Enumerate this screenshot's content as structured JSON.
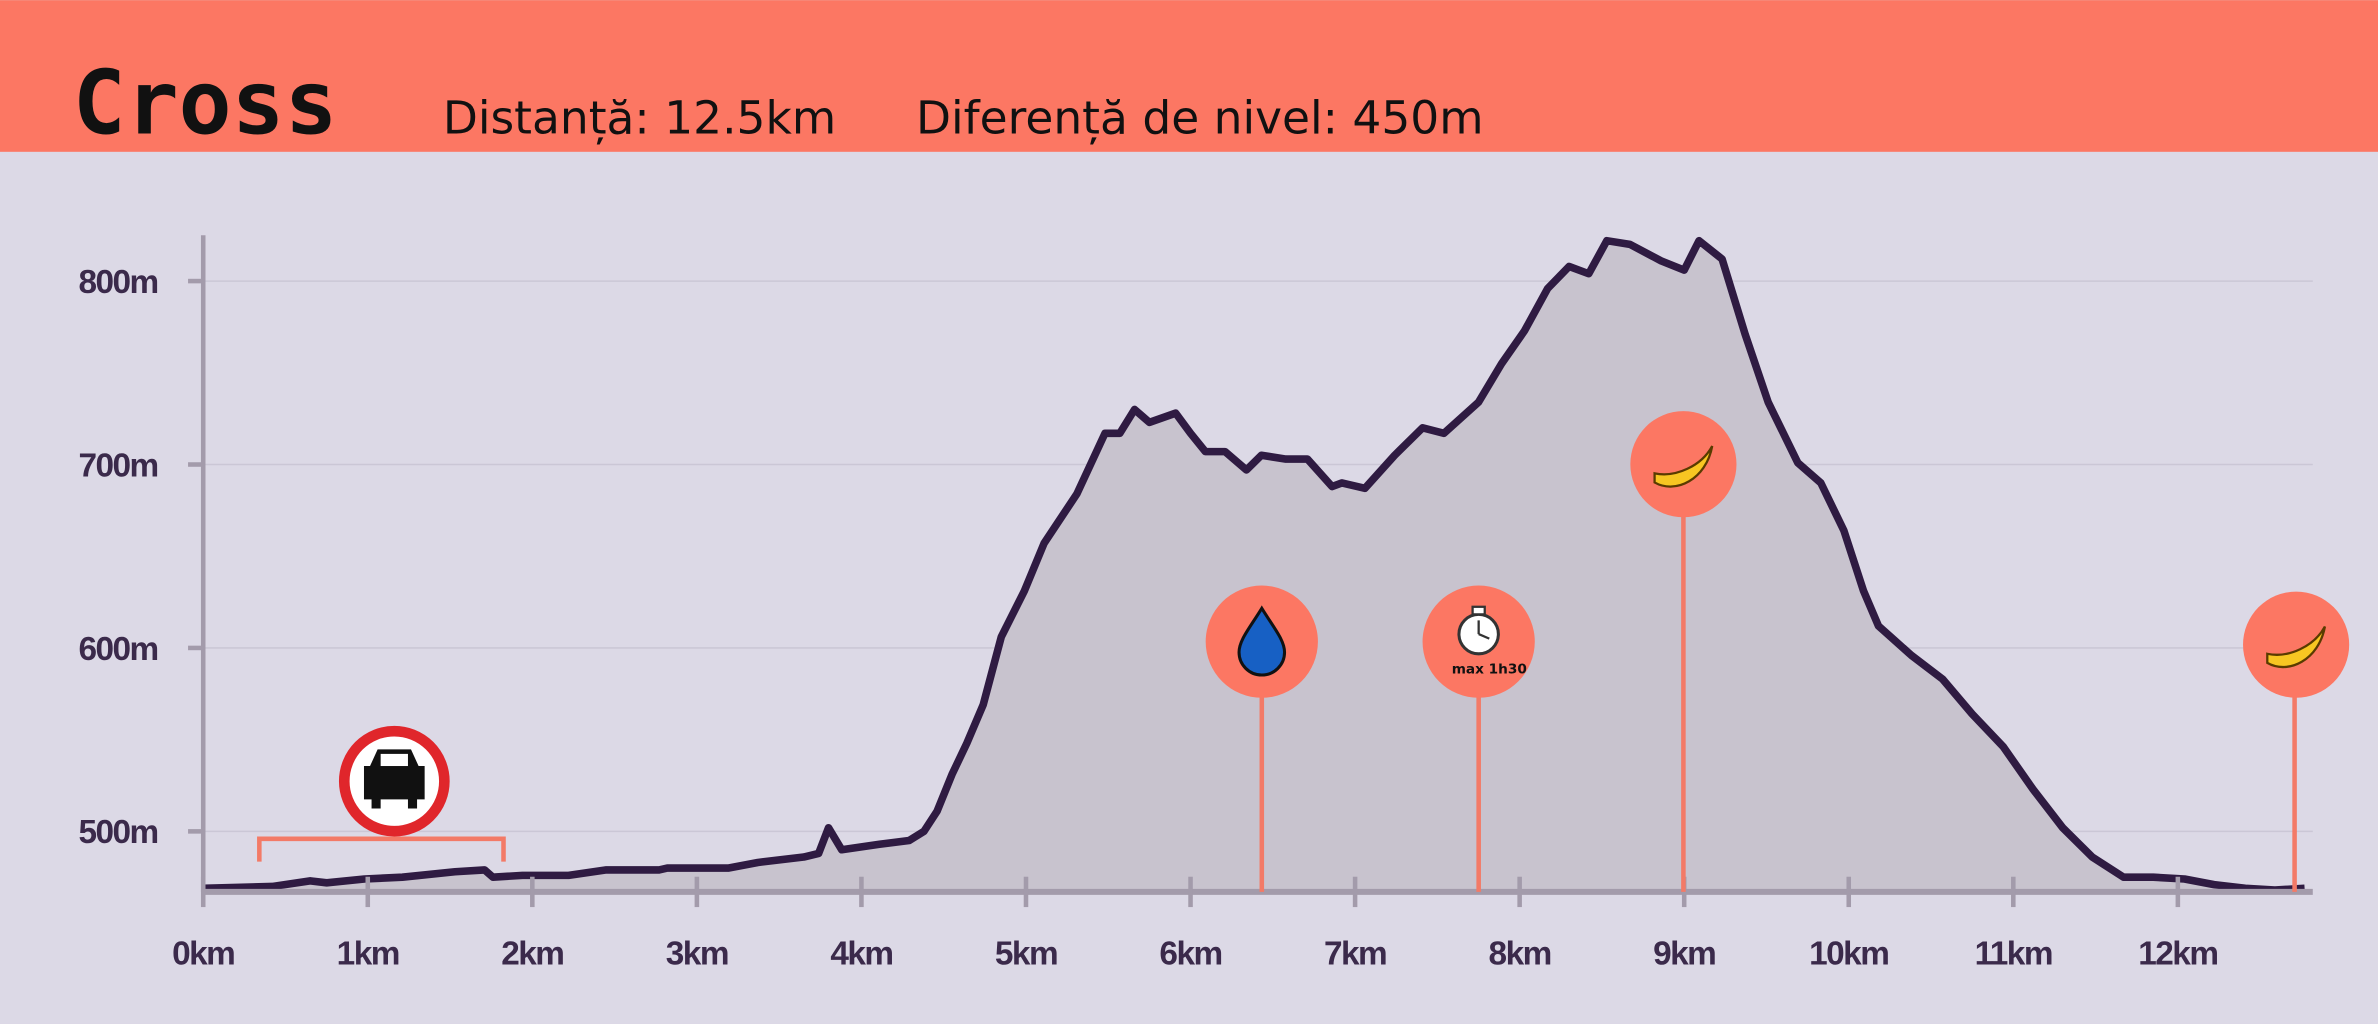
{
  "header": {
    "title": "Cross",
    "distance": "Distanță: 12.5km",
    "elevation_gain": "Diferență de nivel: 450m"
  },
  "chart_data": {
    "type": "area",
    "x": [
      0,
      0.42,
      0.65,
      0.75,
      0.98,
      1.21,
      1.53,
      1.71,
      1.76,
      1.94,
      2.22,
      2.45,
      2.77,
      2.82,
      3.19,
      3.37,
      3.65,
      3.74,
      3.8,
      3.88,
      4.11,
      4.29,
      4.38,
      4.46,
      4.55,
      4.64,
      4.74,
      4.85,
      4.99,
      5.11,
      5.31,
      5.48,
      5.57,
      5.66,
      5.75,
      5.91,
      6.0,
      6.09,
      6.21,
      6.34,
      6.43,
      6.58,
      6.71,
      6.86,
      6.92,
      7.06,
      7.24,
      7.41,
      7.54,
      7.75,
      7.89,
      8.03,
      8.17,
      8.3,
      8.42,
      8.53,
      8.67,
      8.86,
      9.0,
      9.09,
      9.23,
      9.37,
      9.51,
      9.69,
      9.83,
      9.97,
      10.09,
      10.18,
      10.38,
      10.57,
      10.75,
      10.94,
      11.12,
      11.3,
      11.48,
      11.67,
      11.85,
      12.04,
      12.22,
      12.41,
      12.59,
      12.77
    ],
    "values": [
      469,
      470,
      473,
      472,
      474,
      475,
      478,
      479,
      475,
      476,
      476,
      479,
      479,
      480,
      480,
      483,
      486,
      488,
      502,
      490,
      493,
      495,
      500,
      511,
      531,
      548,
      569,
      606,
      631,
      657,
      684,
      717,
      717,
      730,
      723,
      728,
      717,
      707,
      707,
      697,
      705,
      703,
      703,
      688,
      690,
      687,
      705,
      720,
      717,
      734,
      755,
      773,
      796,
      808,
      804,
      822,
      820,
      811,
      806,
      822,
      812,
      771,
      734,
      701,
      690,
      664,
      631,
      612,
      596,
      583,
      564,
      546,
      523,
      502,
      486,
      475,
      475,
      474,
      471,
      469,
      468,
      469
    ],
    "line_color": "#2f1b42",
    "fill_color": "#c8c3ce",
    "grid": true,
    "xlim": [
      0,
      12.82
    ],
    "xticks": [
      {
        "value": 0,
        "label": "0km"
      },
      {
        "value": 1,
        "label": "1km"
      },
      {
        "value": 2,
        "label": "2km"
      },
      {
        "value": 3,
        "label": "3km"
      },
      {
        "value": 4,
        "label": "4km"
      },
      {
        "value": 5,
        "label": "5km"
      },
      {
        "value": 6,
        "label": "6km"
      },
      {
        "value": 7,
        "label": "7km"
      },
      {
        "value": 8,
        "label": "8km"
      },
      {
        "value": 9,
        "label": "9km"
      },
      {
        "value": 10,
        "label": "10km"
      },
      {
        "value": 11,
        "label": "11km"
      },
      {
        "value": 12,
        "label": "12km"
      }
    ],
    "ylim": [
      467,
      825
    ],
    "yticks": [
      {
        "value": 500,
        "label": "500m"
      },
      {
        "value": 600,
        "label": "600m"
      },
      {
        "value": 700,
        "label": "700m"
      },
      {
        "value": 800,
        "label": "800m"
      }
    ],
    "annotations": [
      "max 1h30"
    ]
  }
}
